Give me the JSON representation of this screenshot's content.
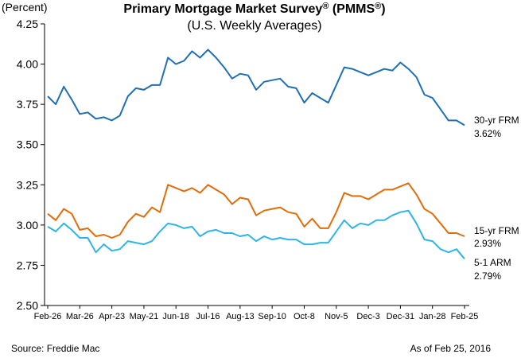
{
  "chart_data": {
    "type": "line",
    "title_main": "Primary Mortgage Market Survey",
    "title_reg": "®",
    "title_paren_open": " (PMMS",
    "title_paren_close": ")",
    "subtitle": "(U.S. Weekly Averages)",
    "ylabel": "(Percent)",
    "ylim": [
      2.5,
      4.25
    ],
    "yticks": [
      "4.25",
      "4.00",
      "3.75",
      "3.50",
      "3.25",
      "3.00",
      "2.75",
      "2.50"
    ],
    "ytick_values": [
      4.25,
      4.0,
      3.75,
      3.5,
      3.25,
      3.0,
      2.75,
      2.5
    ],
    "x": [
      "Feb-26",
      "Mar-5",
      "Mar-12",
      "Mar-19",
      "Mar-26",
      "Apr-2",
      "Apr-9",
      "Apr-16",
      "Apr-23",
      "Apr-30",
      "May-7",
      "May-14",
      "May-21",
      "May-28",
      "Jun-4",
      "Jun-11",
      "Jun-18",
      "Jun-25",
      "Jul-2",
      "Jul-9",
      "Jul-16",
      "Jul-23",
      "Jul-30",
      "Aug-6",
      "Aug-13",
      "Aug-20",
      "Aug-27",
      "Sep-3",
      "Sep-10",
      "Sep-17",
      "Sep-24",
      "Oct-1",
      "Oct-8",
      "Oct-15",
      "Oct-22",
      "Oct-29",
      "Nov-5",
      "Nov-12",
      "Nov-19",
      "Nov-25",
      "Dec-3",
      "Dec-10",
      "Dec-17",
      "Dec-24",
      "Dec-31",
      "Jan-7",
      "Jan-14",
      "Jan-21",
      "Jan-28",
      "Feb-4",
      "Feb-11",
      "Feb-18",
      "Feb-25"
    ],
    "xtick_labels": [
      "Feb-26",
      "Mar-26",
      "Apr-23",
      "May-21",
      "Jun-18",
      "Jul-16",
      "Aug-13",
      "Sep-10",
      "Oct-8",
      "Nov-5",
      "Dec-3",
      "Dec-31",
      "Jan-28",
      "Feb-25"
    ],
    "xtick_indices": [
      0,
      4,
      8,
      12,
      16,
      20,
      24,
      28,
      32,
      36,
      40,
      44,
      48,
      52
    ],
    "series": [
      {
        "name": "30-yr FRM",
        "last_value_label": "3.62%",
        "color": "#1f6fb5",
        "values": [
          3.8,
          3.75,
          3.86,
          3.78,
          3.69,
          3.7,
          3.66,
          3.67,
          3.65,
          3.68,
          3.8,
          3.85,
          3.84,
          3.87,
          3.87,
          4.04,
          4.0,
          4.02,
          4.08,
          4.04,
          4.09,
          4.04,
          3.98,
          3.91,
          3.94,
          3.93,
          3.84,
          3.89,
          3.9,
          3.91,
          3.86,
          3.85,
          3.76,
          3.82,
          3.79,
          3.76,
          3.87,
          3.98,
          3.97,
          3.95,
          3.93,
          3.95,
          3.97,
          3.96,
          4.01,
          3.97,
          3.92,
          3.81,
          3.79,
          3.72,
          3.65,
          3.65,
          3.62
        ]
      },
      {
        "name": "15-yr FRM",
        "last_value_label": "2.93%",
        "color": "#e36c0a",
        "values": [
          3.07,
          3.03,
          3.1,
          3.07,
          2.97,
          2.98,
          2.93,
          2.94,
          2.92,
          2.94,
          3.02,
          3.07,
          3.05,
          3.11,
          3.08,
          3.25,
          3.23,
          3.21,
          3.23,
          3.2,
          3.25,
          3.22,
          3.19,
          3.13,
          3.17,
          3.16,
          3.06,
          3.09,
          3.1,
          3.11,
          3.08,
          3.07,
          2.99,
          3.04,
          2.98,
          2.98,
          3.08,
          3.2,
          3.18,
          3.18,
          3.16,
          3.19,
          3.22,
          3.22,
          3.24,
          3.26,
          3.19,
          3.1,
          3.07,
          3.01,
          2.95,
          2.95,
          2.93
        ]
      },
      {
        "name": "5-1 ARM",
        "last_value_label": "2.79%",
        "color": "#2eb5e6",
        "values": [
          2.99,
          2.96,
          3.01,
          2.97,
          2.92,
          2.92,
          2.83,
          2.88,
          2.84,
          2.85,
          2.9,
          2.89,
          2.88,
          2.9,
          2.96,
          3.01,
          3.0,
          2.98,
          2.99,
          2.93,
          2.96,
          2.97,
          2.95,
          2.95,
          2.93,
          2.94,
          2.9,
          2.93,
          2.91,
          2.92,
          2.91,
          2.91,
          2.88,
          2.88,
          2.89,
          2.89,
          2.96,
          3.03,
          2.98,
          3.01,
          3.0,
          3.03,
          3.03,
          3.06,
          3.08,
          3.09,
          3.01,
          2.91,
          2.9,
          2.85,
          2.83,
          2.85,
          2.79
        ]
      }
    ],
    "source": "Source: Freddie Mac",
    "as_of": "As of Feb 25, 2016",
    "grid": false,
    "legend": "direct labels at right end of lines"
  }
}
